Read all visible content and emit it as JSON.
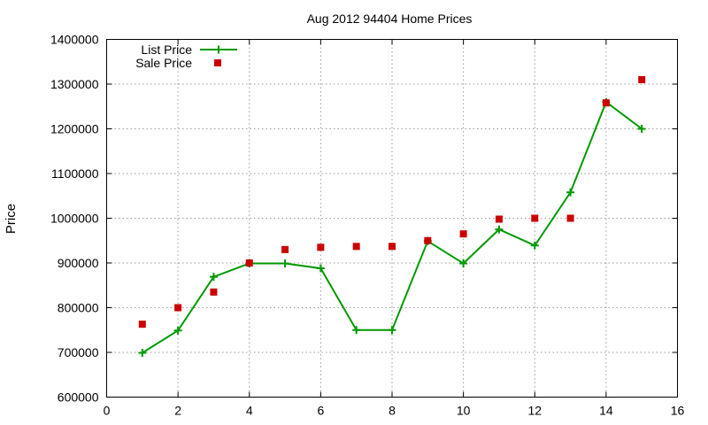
{
  "chart_data": {
    "type": "line",
    "title": "Aug 2012 94404 Home Prices",
    "xlabel": "",
    "ylabel": "Price",
    "xlim": [
      0,
      16
    ],
    "ylim": [
      600000,
      1400000
    ],
    "x_ticks": [
      0,
      2,
      4,
      6,
      8,
      10,
      12,
      14,
      16
    ],
    "y_ticks": [
      600000,
      700000,
      800000,
      900000,
      1000000,
      1100000,
      1200000,
      1300000,
      1400000
    ],
    "x_tick_labels": [
      "0",
      "2",
      "4",
      "6",
      "8",
      "10",
      "12",
      "14",
      "16"
    ],
    "y_tick_labels": [
      "600000",
      "700000",
      "800000",
      "900000",
      "1000000",
      "1100000",
      "1200000",
      "1300000",
      "1400000"
    ],
    "grid": true,
    "legend_position": "top-left",
    "series": [
      {
        "name": "List Price",
        "style": "line-with-plus-markers",
        "color": "#009900",
        "x": [
          1,
          2,
          3,
          4,
          5,
          6,
          7,
          8,
          9,
          10,
          11,
          12,
          13,
          14,
          15
        ],
        "values": [
          699000,
          749000,
          869000,
          899000,
          899000,
          888000,
          750000,
          750000,
          949000,
          899000,
          975000,
          939000,
          1058000,
          1260000,
          1200000
        ]
      },
      {
        "name": "Sale Price",
        "style": "square-markers",
        "color": "#cc0000",
        "x": [
          1,
          2,
          3,
          4,
          5,
          6,
          7,
          8,
          9,
          10,
          11,
          12,
          13,
          14,
          15
        ],
        "values": [
          763000,
          800000,
          835000,
          900000,
          930000,
          935000,
          937000,
          937000,
          950000,
          965000,
          998000,
          1000000,
          1000000,
          1258000,
          1310000
        ]
      }
    ]
  }
}
